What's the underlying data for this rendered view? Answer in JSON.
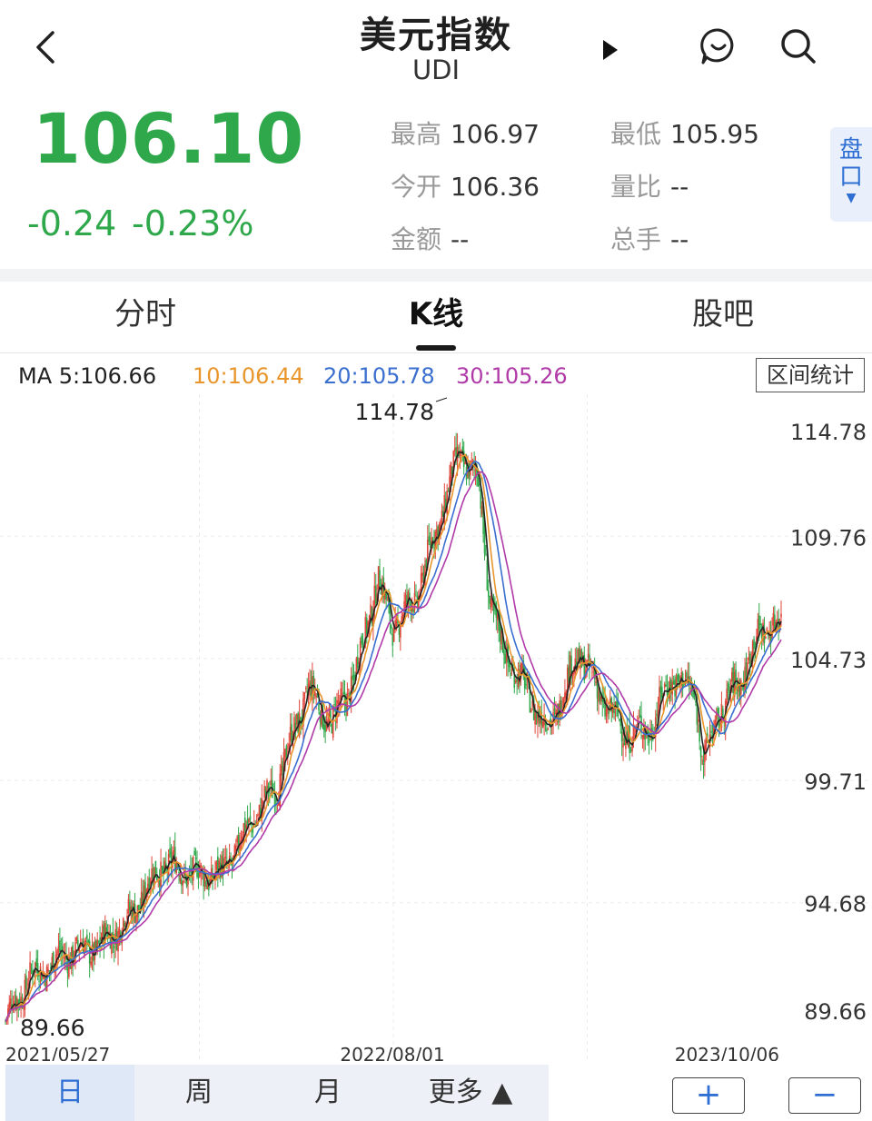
{
  "header": {
    "title": "美元指数",
    "subtitle": "UDI",
    "icons": [
      "back-icon",
      "play-icon",
      "chat-icon",
      "search-icon"
    ]
  },
  "quote": {
    "price": "106.10",
    "change": "-0.24",
    "change_pct": "-0.23%",
    "stats": [
      {
        "label": "最高",
        "value": "106.97"
      },
      {
        "label": "最低",
        "value": "105.95"
      },
      {
        "label": "今开",
        "value": "106.36"
      },
      {
        "label": "量比",
        "value": "--"
      },
      {
        "label": "金额",
        "value": "--"
      },
      {
        "label": "总手",
        "value": "--"
      }
    ],
    "pankou": "盘口"
  },
  "tabs": [
    {
      "label": "分时",
      "active": false
    },
    {
      "label": "K线",
      "active": true
    },
    {
      "label": "股吧",
      "active": false
    }
  ],
  "ma": {
    "ma5": "MA 5:106.66",
    "ma10": "10:106.44",
    "ma20": "20:105.78",
    "ma30": "30:105.26",
    "range_button": "区间统计"
  },
  "colors": {
    "down": "#2ea84a",
    "up": "#e0453a",
    "ma5": "#222222",
    "ma10": "#e8962c",
    "ma20": "#3a6fd0",
    "ma30": "#b03aa8",
    "accent": "#2f6fd3"
  },
  "chart_data": {
    "type": "candlestick",
    "y_ticks": [
      "114.78",
      "109.76",
      "104.73",
      "99.71",
      "94.68",
      "89.66"
    ],
    "ylim": [
      89.66,
      114.78
    ],
    "x_labels": [
      "2021/05/27",
      "2022/08/01",
      "2023/10/06"
    ],
    "max_annotation": "114.78",
    "min_annotation": "89.66",
    "trend": [
      {
        "x": 0,
        "y": 89.8
      },
      {
        "x": 0.03,
        "y": 91.6
      },
      {
        "x": 0.08,
        "y": 92.6
      },
      {
        "x": 0.12,
        "y": 92.9
      },
      {
        "x": 0.16,
        "y": 94.1
      },
      {
        "x": 0.2,
        "y": 96.2
      },
      {
        "x": 0.22,
        "y": 96.1
      },
      {
        "x": 0.25,
        "y": 95.8
      },
      {
        "x": 0.28,
        "y": 95.9
      },
      {
        "x": 0.32,
        "y": 98.2
      },
      {
        "x": 0.35,
        "y": 99.5
      },
      {
        "x": 0.39,
        "y": 103.5
      },
      {
        "x": 0.42,
        "y": 102.0
      },
      {
        "x": 0.45,
        "y": 104.0
      },
      {
        "x": 0.48,
        "y": 108.0
      },
      {
        "x": 0.5,
        "y": 106.0
      },
      {
        "x": 0.53,
        "y": 107.3
      },
      {
        "x": 0.56,
        "y": 110.5
      },
      {
        "x": 0.585,
        "y": 113.2
      },
      {
        "x": 0.61,
        "y": 112.0
      },
      {
        "x": 0.625,
        "y": 107.0
      },
      {
        "x": 0.64,
        "y": 105.2
      },
      {
        "x": 0.67,
        "y": 103.5
      },
      {
        "x": 0.7,
        "y": 101.8
      },
      {
        "x": 0.74,
        "y": 105.0
      },
      {
        "x": 0.77,
        "y": 103.0
      },
      {
        "x": 0.8,
        "y": 101.6
      },
      {
        "x": 0.83,
        "y": 101.8
      },
      {
        "x": 0.86,
        "y": 104.0
      },
      {
        "x": 0.89,
        "y": 103.2
      },
      {
        "x": 0.9,
        "y": 100.4
      },
      {
        "x": 0.92,
        "y": 102.5
      },
      {
        "x": 0.95,
        "y": 104.0
      },
      {
        "x": 0.975,
        "y": 106.0
      },
      {
        "x": 1.0,
        "y": 106.1
      }
    ]
  },
  "bottom": {
    "periods": [
      "日",
      "周",
      "月",
      "更多 ▲"
    ],
    "zoom_in": "+",
    "zoom_out": "−"
  }
}
